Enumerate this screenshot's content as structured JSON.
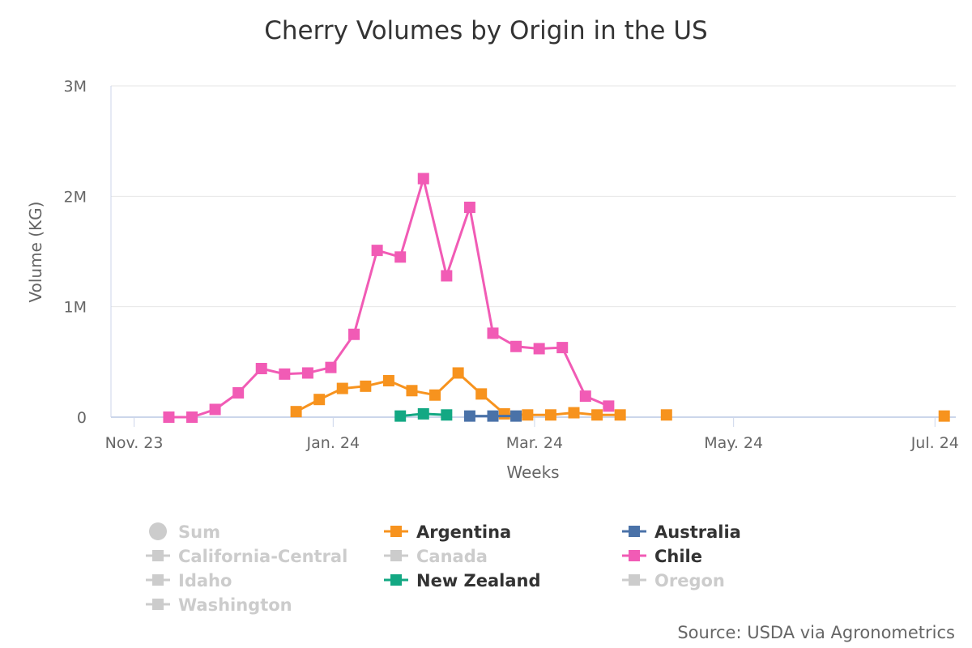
{
  "chart_data": {
    "type": "line",
    "title": "Cherry Volumes by Origin in the US",
    "xlabel": "Weeks",
    "ylabel": "Volume (KG)",
    "ylim": [
      0,
      3000000
    ],
    "y_ticks": [
      {
        "value": 0,
        "label": "0"
      },
      {
        "value": 1000000,
        "label": "1M"
      },
      {
        "value": 2000000,
        "label": "2M"
      },
      {
        "value": 3000000,
        "label": "3M"
      }
    ],
    "x_range_weeks": [
      -1,
      35.5
    ],
    "x_ticks": [
      {
        "week": 0,
        "label": "Nov. 23"
      },
      {
        "week": 8.6,
        "label": "Jan. 24"
      },
      {
        "week": 17.3,
        "label": "Mar. 24"
      },
      {
        "week": 25.9,
        "label": "May. 24"
      },
      {
        "week": 34.6,
        "label": "Jul. 24"
      }
    ],
    "x_unit": "weeks since Nov. 2023",
    "series": [
      {
        "name": "Chile",
        "color": "#f15bb5",
        "visible": true,
        "points": [
          [
            1.5,
            0
          ],
          [
            2.5,
            0
          ],
          [
            3.5,
            70000
          ],
          [
            4.5,
            220000
          ],
          [
            5.5,
            440000
          ],
          [
            6.5,
            390000
          ],
          [
            7.5,
            400000
          ],
          [
            8.5,
            450000
          ],
          [
            9.5,
            750000
          ],
          [
            10.5,
            1510000
          ],
          [
            11.5,
            1450000
          ],
          [
            12.5,
            2160000
          ],
          [
            13.5,
            1280000
          ],
          [
            14.5,
            1900000
          ],
          [
            15.5,
            760000
          ],
          [
            16.5,
            640000
          ],
          [
            17.5,
            620000
          ],
          [
            18.5,
            630000
          ],
          [
            19.5,
            190000
          ],
          [
            20.5,
            100000
          ]
        ]
      },
      {
        "name": "Argentina",
        "color": "#f7931e",
        "visible": true,
        "points": [
          [
            7.0,
            50000
          ],
          [
            8.0,
            160000
          ],
          [
            9.0,
            260000
          ],
          [
            10.0,
            280000
          ],
          [
            11.0,
            330000
          ],
          [
            12.0,
            240000
          ],
          [
            13.0,
            200000
          ],
          [
            14.0,
            400000
          ],
          [
            15.0,
            210000
          ],
          [
            16.0,
            30000
          ],
          [
            17.0,
            20000
          ],
          [
            18.0,
            20000
          ],
          [
            19.0,
            40000
          ],
          [
            20.0,
            20000
          ],
          [
            21.0,
            20000
          ],
          [
            23.0,
            20000
          ],
          [
            35.0,
            10000
          ]
        ]
      },
      {
        "name": "New Zealand",
        "color": "#13a883",
        "visible": true,
        "points": [
          [
            11.5,
            10000
          ],
          [
            12.5,
            30000
          ],
          [
            13.5,
            20000
          ]
        ]
      },
      {
        "name": "Australia",
        "color": "#4a72a8",
        "visible": true,
        "points": [
          [
            14.5,
            10000
          ],
          [
            15.5,
            10000
          ],
          [
            16.5,
            10000
          ]
        ]
      }
    ],
    "legend": {
      "position": "bottom",
      "items": [
        {
          "name": "Sum",
          "visible": false,
          "marker": "circle",
          "color": "#cccccc"
        },
        {
          "name": "Argentina",
          "visible": true,
          "marker": "square",
          "color": "#f7931e"
        },
        {
          "name": "Australia",
          "visible": true,
          "marker": "square",
          "color": "#4a72a8"
        },
        {
          "name": "California-Central",
          "visible": false,
          "marker": "square",
          "color": "#cccccc"
        },
        {
          "name": "Canada",
          "visible": false,
          "marker": "square",
          "color": "#cccccc"
        },
        {
          "name": "Chile",
          "visible": true,
          "marker": "square",
          "color": "#f15bb5"
        },
        {
          "name": "Idaho",
          "visible": false,
          "marker": "square",
          "color": "#cccccc"
        },
        {
          "name": "New Zealand",
          "visible": true,
          "marker": "square",
          "color": "#13a883"
        },
        {
          "name": "Oregon",
          "visible": false,
          "marker": "square",
          "color": "#cccccc"
        },
        {
          "name": "Washington",
          "visible": false,
          "marker": "square",
          "color": "#cccccc"
        }
      ]
    },
    "credit": "Source: USDA via Agronometrics"
  }
}
